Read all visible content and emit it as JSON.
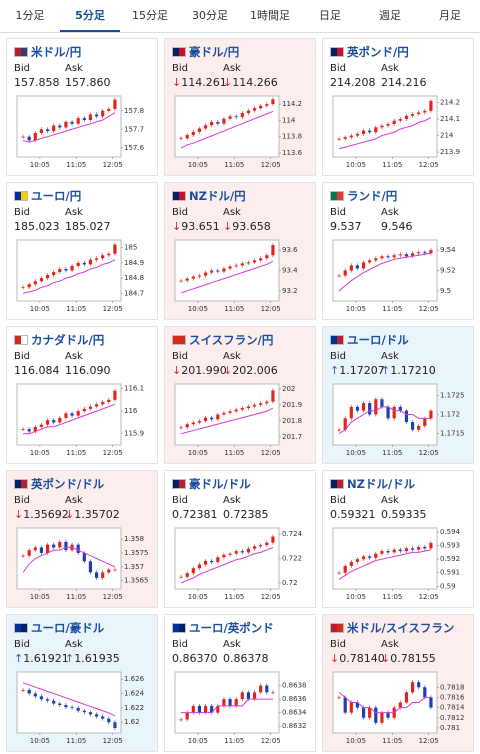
{
  "tabs": [
    "1分足",
    "5分足",
    "15分足",
    "30分足",
    "1時間足",
    "日足",
    "週足",
    "月足"
  ],
  "selected_tab": 1,
  "labels": {
    "bid": "Bid",
    "ask": "Ask"
  },
  "time_labels": [
    "10:05",
    "11:05",
    "12:05"
  ],
  "cards": [
    {
      "name": "米ドル/円",
      "flag": [
        "#b22234",
        "#3c3b6e"
      ],
      "trend": null,
      "arrow": "",
      "bid": "157.858",
      "ask": "157.860",
      "chart": {
        "type": "candlestick",
        "ylim": [
          157.55,
          157.88
        ],
        "yticks": [
          157.8,
          157.7,
          157.6
        ],
        "values": [
          157.66,
          157.64,
          157.68,
          157.7,
          157.69,
          157.72,
          157.71,
          157.74,
          157.73,
          157.76,
          157.75,
          157.78,
          157.77,
          157.8,
          157.81,
          157.86
        ],
        "ma": [
          157.64,
          157.63,
          157.64,
          157.65,
          157.66,
          157.67,
          157.68,
          157.69,
          157.7,
          157.71,
          157.72,
          157.73,
          157.74,
          157.75,
          157.77,
          157.79
        ]
      }
    },
    {
      "name": "豪ドル/円",
      "flag": [
        "#012169",
        "#c8102e"
      ],
      "trend": "down",
      "arrow": "↓",
      "bid": "114.261",
      "ask": "114.266",
      "chart": {
        "type": "candlestick",
        "ylim": [
          113.55,
          114.3
        ],
        "yticks": [
          114.2,
          114,
          113.8,
          113.6
        ],
        "values": [
          113.78,
          113.82,
          113.86,
          113.9,
          113.94,
          113.98,
          113.96,
          114.02,
          114.05,
          114.04,
          114.09,
          114.12,
          114.15,
          114.18,
          114.2,
          114.26
        ],
        "ma": [
          113.66,
          113.7,
          113.72,
          113.75,
          113.78,
          113.81,
          113.84,
          113.87,
          113.9,
          113.93,
          113.96,
          113.99,
          114.02,
          114.05,
          114.08,
          114.11
        ]
      }
    },
    {
      "name": "英ポンド/円",
      "flag": [
        "#012169",
        "#c8102e"
      ],
      "trend": null,
      "arrow": "",
      "bid": "214.208",
      "ask": "214.216",
      "chart": {
        "type": "candlestick",
        "ylim": [
          213.87,
          214.24
        ],
        "yticks": [
          214.2,
          214.1,
          214,
          213.9
        ],
        "values": [
          213.98,
          213.99,
          214.0,
          214.01,
          214.03,
          214.02,
          214.05,
          214.06,
          214.07,
          214.09,
          214.1,
          214.12,
          214.13,
          214.14,
          214.15,
          214.21
        ],
        "ma": [
          213.92,
          213.93,
          213.94,
          213.95,
          213.96,
          213.97,
          213.98,
          214.0,
          214.01,
          214.02,
          214.04,
          214.05,
          214.06,
          214.08,
          214.09,
          214.11
        ]
      }
    },
    {
      "name": "ユーロ/円",
      "flag": [
        "#003399",
        "#ffcc00"
      ],
      "trend": null,
      "arrow": "",
      "bid": "185.023",
      "ask": "185.027",
      "chart": {
        "type": "candlestick",
        "ylim": [
          184.65,
          185.05
        ],
        "yticks": [
          185,
          184.9,
          184.8,
          184.7
        ],
        "values": [
          184.74,
          184.76,
          184.78,
          184.8,
          184.82,
          184.84,
          184.86,
          184.85,
          184.88,
          184.9,
          184.89,
          184.92,
          184.93,
          184.95,
          184.96,
          185.02
        ],
        "ma": [
          184.7,
          184.71,
          184.72,
          184.74,
          184.75,
          184.77,
          184.78,
          184.8,
          184.81,
          184.83,
          184.84,
          184.86,
          184.87,
          184.89,
          184.9,
          184.92
        ]
      }
    },
    {
      "name": "NZドル/円",
      "flag": [
        "#012169",
        "#c8102e"
      ],
      "trend": "down",
      "arrow": "↓",
      "bid": "93.651",
      "ask": "93.658",
      "chart": {
        "type": "candlestick",
        "ylim": [
          93.1,
          93.7
        ],
        "yticks": [
          93.6,
          93.4,
          93.2
        ],
        "values": [
          93.3,
          93.32,
          93.34,
          93.35,
          93.38,
          93.4,
          93.39,
          93.42,
          93.44,
          93.45,
          93.47,
          93.48,
          93.5,
          93.52,
          93.55,
          93.65
        ],
        "ma": [
          93.18,
          93.2,
          93.22,
          93.24,
          93.26,
          93.28,
          93.3,
          93.32,
          93.34,
          93.36,
          93.38,
          93.4,
          93.42,
          93.44,
          93.46,
          93.49
        ]
      }
    },
    {
      "name": "ランド/円",
      "flag": [
        "#007a4d",
        "#de3831"
      ],
      "trend": null,
      "arrow": "",
      "bid": "9.537",
      "ask": "9.546",
      "chart": {
        "type": "candlestick",
        "ylim": [
          9.49,
          9.55
        ],
        "yticks": [
          9.54,
          9.52,
          9.5
        ],
        "values": [
          9.515,
          9.52,
          9.525,
          9.522,
          9.528,
          9.53,
          9.532,
          9.534,
          9.533,
          9.535,
          9.536,
          9.534,
          9.537,
          9.538,
          9.537,
          9.54
        ],
        "ma": [
          9.5,
          9.505,
          9.51,
          9.514,
          9.518,
          9.521,
          9.524,
          9.527,
          9.529,
          9.531,
          9.532,
          9.533,
          9.534,
          9.535,
          9.536,
          9.537
        ]
      }
    },
    {
      "name": "カナダドル/円",
      "flag": [
        "#d52b1e",
        "#ffffff"
      ],
      "trend": null,
      "arrow": "",
      "bid": "116.084",
      "ask": "116.090",
      "chart": {
        "type": "candlestick",
        "ylim": [
          115.85,
          116.12
        ],
        "yticks": [
          116.1,
          116,
          115.9
        ],
        "values": [
          115.92,
          115.91,
          115.93,
          115.94,
          115.96,
          115.95,
          115.97,
          115.99,
          115.98,
          116.0,
          116.01,
          116.02,
          116.03,
          116.04,
          116.05,
          116.09
        ],
        "ma": [
          115.9,
          115.9,
          115.91,
          115.92,
          115.93,
          115.93,
          115.94,
          115.95,
          115.96,
          115.97,
          115.98,
          115.99,
          116.0,
          116.01,
          116.02,
          116.03
        ]
      }
    },
    {
      "name": "スイスフラン/円",
      "flag": [
        "#d52b1e",
        "#d52b1e"
      ],
      "trend": "down",
      "arrow": "↓",
      "bid": "201.990",
      "ask": "202.006",
      "chart": {
        "type": "candlestick",
        "ylim": [
          201.65,
          202.03
        ],
        "yticks": [
          202,
          201.9,
          201.8,
          201.7
        ],
        "values": [
          201.76,
          201.78,
          201.79,
          201.8,
          201.82,
          201.81,
          201.84,
          201.85,
          201.86,
          201.87,
          201.88,
          201.89,
          201.9,
          201.91,
          201.92,
          201.99
        ],
        "ma": [
          201.72,
          201.73,
          201.74,
          201.75,
          201.76,
          201.77,
          201.78,
          201.79,
          201.8,
          201.81,
          201.82,
          201.83,
          201.84,
          201.85,
          201.86,
          201.88
        ]
      }
    },
    {
      "name": "ユーロ/ドル",
      "flag": [
        "#003399",
        "#b22234"
      ],
      "trend": "up",
      "arrow": "↑",
      "bid": "1.17207",
      "ask": "1.17210",
      "chart": {
        "type": "candlestick",
        "ylim": [
          1.1712,
          1.1728
        ],
        "yticks": [
          1.1725,
          1.172,
          1.1715
        ],
        "values": [
          1.1716,
          1.1719,
          1.1722,
          1.1721,
          1.1723,
          1.172,
          1.1724,
          1.1722,
          1.1719,
          1.1722,
          1.1721,
          1.1718,
          1.1716,
          1.1717,
          1.1719,
          1.1721
        ],
        "ma": [
          1.1715,
          1.1716,
          1.1718,
          1.1719,
          1.172,
          1.1721,
          1.1721,
          1.1722,
          1.1722,
          1.1721,
          1.1721,
          1.172,
          1.172,
          1.1719,
          1.1719,
          1.1719
        ]
      }
    },
    {
      "name": "英ポンド/ドル",
      "flag": [
        "#012169",
        "#b22234"
      ],
      "trend": "down",
      "arrow": "↓",
      "bid": "1.35692",
      "ask": "1.35702",
      "chart": {
        "type": "candlestick",
        "ylim": [
          1.3562,
          1.3584
        ],
        "yticks": [
          1.358,
          1.3575,
          1.357,
          1.3565
        ],
        "values": [
          1.3574,
          1.3576,
          1.3577,
          1.3575,
          1.3578,
          1.3577,
          1.3579,
          1.3576,
          1.3578,
          1.3575,
          1.3572,
          1.3568,
          1.3566,
          1.3568,
          1.3569,
          1.3569
        ],
        "ma": [
          1.3568,
          1.3571,
          1.3573,
          1.3574,
          1.3575,
          1.3576,
          1.3576,
          1.3577,
          1.3577,
          1.3576,
          1.3575,
          1.3574,
          1.3573,
          1.3572,
          1.3571,
          1.357
        ]
      }
    },
    {
      "name": "豪ドル/ドル",
      "flag": [
        "#012169",
        "#b22234"
      ],
      "trend": null,
      "arrow": "",
      "bid": "0.72381",
      "ask": "0.72385",
      "chart": {
        "type": "candlestick",
        "ylim": [
          0.7195,
          0.7245
        ],
        "yticks": [
          0.724,
          0.722,
          0.72
        ],
        "values": [
          0.7205,
          0.7208,
          0.7212,
          0.7215,
          0.7218,
          0.7217,
          0.7221,
          0.7223,
          0.7224,
          0.7226,
          0.7225,
          0.7228,
          0.723,
          0.7231,
          0.7233,
          0.7238
        ],
        "ma": [
          0.72,
          0.7202,
          0.7204,
          0.7207,
          0.7209,
          0.7211,
          0.7213,
          0.7215,
          0.7217,
          0.7219,
          0.722,
          0.7222,
          0.7224,
          0.7225,
          0.7227,
          0.7229
        ]
      }
    },
    {
      "name": "NZドル/ドル",
      "flag": [
        "#012169",
        "#b22234"
      ],
      "trend": null,
      "arrow": "",
      "bid": "0.59321",
      "ask": "0.59335",
      "chart": {
        "type": "candlestick",
        "ylim": [
          0.5898,
          0.5943
        ],
        "yticks": [
          0.594,
          0.593,
          0.592,
          0.591,
          0.59
        ],
        "values": [
          0.591,
          0.5915,
          0.5918,
          0.592,
          0.5922,
          0.5921,
          0.5924,
          0.5926,
          0.5925,
          0.5927,
          0.5926,
          0.5928,
          0.5927,
          0.5929,
          0.5928,
          0.5932
        ],
        "ma": [
          0.5905,
          0.5908,
          0.5911,
          0.5913,
          0.5915,
          0.5917,
          0.5919,
          0.592,
          0.5921,
          0.5922,
          0.5923,
          0.5924,
          0.5925,
          0.5925,
          0.5926,
          0.5927
        ]
      }
    },
    {
      "name": "ユーロ/豪ドル",
      "flag": [
        "#003399",
        "#012169"
      ],
      "trend": "up",
      "arrow": "↑",
      "bid": "1.61921",
      "ask": "1.61935",
      "chart": {
        "type": "candlestick",
        "ylim": [
          1.6185,
          1.627
        ],
        "yticks": [
          1.626,
          1.624,
          1.622,
          1.62
        ],
        "values": [
          1.6245,
          1.624,
          1.6236,
          1.6232,
          1.623,
          1.6226,
          1.6224,
          1.6221,
          1.622,
          1.6216,
          1.6214,
          1.6211,
          1.6208,
          1.6205,
          1.62,
          1.6192
        ],
        "ma": [
          1.6255,
          1.6252,
          1.6249,
          1.6246,
          1.6243,
          1.624,
          1.6237,
          1.6234,
          1.6231,
          1.6228,
          1.6225,
          1.6222,
          1.6219,
          1.6216,
          1.6213,
          1.6209
        ]
      }
    },
    {
      "name": "ユーロ/英ポンド",
      "flag": [
        "#003399",
        "#012169"
      ],
      "trend": null,
      "arrow": "",
      "bid": "0.86370",
      "ask": "0.86378",
      "chart": {
        "type": "candlestick",
        "ylim": [
          0.8631,
          0.864
        ],
        "yticks": [
          0.8638,
          0.8636,
          0.8634,
          0.8632
        ],
        "values": [
          0.8633,
          0.8634,
          0.8635,
          0.8634,
          0.8635,
          0.8634,
          0.8635,
          0.8636,
          0.8635,
          0.8636,
          0.8637,
          0.8636,
          0.8637,
          0.8638,
          0.8637,
          0.8637
        ],
        "ma": [
          0.8634,
          0.8634,
          0.8634,
          0.8634,
          0.8634,
          0.8634,
          0.8635,
          0.8635,
          0.8635,
          0.8635,
          0.8635,
          0.8636,
          0.8636,
          0.8636,
          0.8636,
          0.8636
        ]
      }
    },
    {
      "name": "米ドル/スイスフラン",
      "flag": [
        "#b22234",
        "#d52b1e"
      ],
      "trend": "down",
      "arrow": "↓",
      "bid": "0.78140",
      "ask": "0.78155",
      "chart": {
        "type": "candlestick",
        "ylim": [
          0.7809,
          0.7821
        ],
        "yticks": [
          0.7818,
          0.7816,
          0.7814,
          0.7812,
          0.781
        ],
        "values": [
          0.7816,
          0.7813,
          0.7815,
          0.7814,
          0.7812,
          0.7814,
          0.7811,
          0.7813,
          0.7812,
          0.7814,
          0.7815,
          0.7817,
          0.7819,
          0.7818,
          0.7816,
          0.7814
        ],
        "ma": [
          0.7817,
          0.7816,
          0.7815,
          0.7815,
          0.7814,
          0.7814,
          0.7813,
          0.7813,
          0.7813,
          0.7813,
          0.7814,
          0.7814,
          0.7815,
          0.7815,
          0.7816,
          0.7816
        ]
      }
    }
  ]
}
